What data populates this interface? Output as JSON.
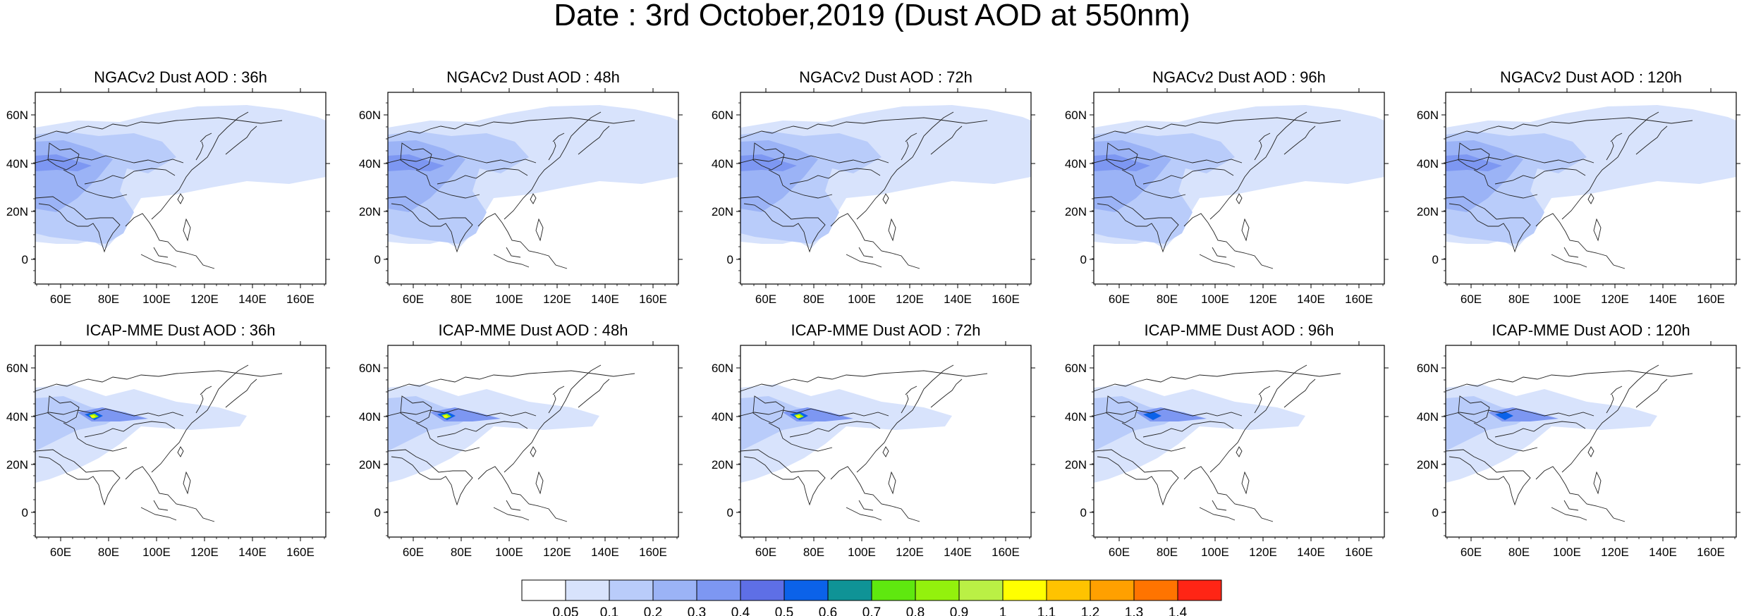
{
  "title": "Date : 3rd October,2019 (Dust AOD at 550nm)",
  "rows": [
    {
      "model": "NGACv2",
      "panels": [
        {
          "title": "NGACv2 Dust AOD : 36h"
        },
        {
          "title": "NGACv2 Dust AOD : 48h"
        },
        {
          "title": "NGACv2 Dust AOD : 72h"
        },
        {
          "title": "NGACv2 Dust AOD : 96h"
        },
        {
          "title": "NGACv2 Dust AOD : 120h"
        }
      ]
    },
    {
      "model": "ICAP-MME",
      "panels": [
        {
          "title": "ICAP-MME Dust AOD : 36h"
        },
        {
          "title": "ICAP-MME Dust AOD : 48h"
        },
        {
          "title": "ICAP-MME Dust AOD : 72h"
        },
        {
          "title": "ICAP-MME Dust AOD : 96h"
        },
        {
          "title": "ICAP-MME Dust AOD : 120h"
        }
      ]
    }
  ],
  "axes": {
    "lat_ticks": [
      "60N",
      "40N",
      "20N",
      "0"
    ],
    "lon_ticks": [
      "60E",
      "80E",
      "100E",
      "120E",
      "140E",
      "160E"
    ]
  },
  "colorbar": {
    "labels": [
      "0.05",
      "0.1",
      "0.2",
      "0.3",
      "0.4",
      "0.5",
      "0.6",
      "0.7",
      "0.8",
      "0.9",
      "1",
      "1.1",
      "1.2",
      "1.3",
      "1.4"
    ],
    "colors": [
      "#ffffff",
      "#d8e3fc",
      "#b9ccfa",
      "#9bb3f6",
      "#7d97f2",
      "#5e6fe6",
      "#0b62e9",
      "#0f9396",
      "#5fe80f",
      "#93f10d",
      "#baf045",
      "#ffff00",
      "#ffc300",
      "#ffa000",
      "#ff7400",
      "#ff2515"
    ]
  }
}
